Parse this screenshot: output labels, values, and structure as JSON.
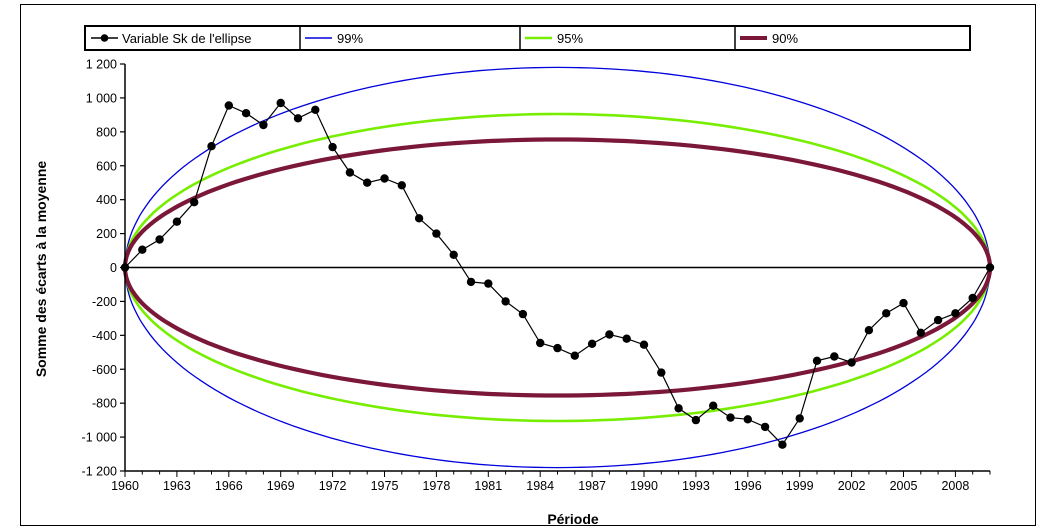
{
  "chart_data": {
    "type": "line",
    "title": "",
    "xlabel": "Période",
    "ylabel": "Somme des écarts à la moyenne",
    "xlim": [
      1960,
      2010
    ],
    "ylim": [
      -1200,
      1200
    ],
    "x_ticks": [
      1960,
      1963,
      1966,
      1969,
      1972,
      1975,
      1978,
      1981,
      1984,
      1987,
      1990,
      1993,
      1996,
      1999,
      2002,
      2005,
      2008
    ],
    "y_ticks": [
      1200,
      1000,
      800,
      600,
      400,
      200,
      0,
      -200,
      -400,
      -600,
      -800,
      -1000,
      -1200
    ],
    "y_tick_labels": [
      "1 200",
      "1 000",
      "800",
      "600",
      "400",
      "200",
      "0",
      "-200",
      "-400",
      "-600",
      "-800",
      "-1 000",
      "-1 200"
    ],
    "legend_placement": "top",
    "grid": false,
    "series": [
      {
        "name": "Variable Sk de l'ellipse",
        "color": "#000000",
        "marker": "circle",
        "x": [
          1960,
          1961,
          1962,
          1963,
          1964,
          1965,
          1966,
          1967,
          1968,
          1969,
          1970,
          1971,
          1972,
          1973,
          1974,
          1975,
          1976,
          1977,
          1978,
          1979,
          1980,
          1981,
          1982,
          1983,
          1984,
          1985,
          1986,
          1987,
          1988,
          1989,
          1990,
          1991,
          1992,
          1993,
          1994,
          1995,
          1996,
          1997,
          1998,
          1999,
          2000,
          2001,
          2002,
          2003,
          2004,
          2005,
          2006,
          2007,
          2008,
          2009,
          2010
        ],
        "values": [
          0,
          105,
          165,
          270,
          385,
          715,
          955,
          910,
          840,
          970,
          880,
          930,
          710,
          560,
          500,
          525,
          485,
          290,
          200,
          75,
          -85,
          -95,
          -200,
          -275,
          -445,
          -475,
          -520,
          -450,
          -395,
          -420,
          -455,
          -620,
          -830,
          -900,
          -815,
          -885,
          -895,
          -940,
          -1045,
          -890,
          -550,
          -525,
          -560,
          -370,
          -270,
          -210,
          -385,
          -310,
          -270,
          -180,
          0
        ]
      },
      {
        "name": "99%",
        "color": "#0000dd",
        "amplitude": 1180
      },
      {
        "name": "95%",
        "color": "#77ee00",
        "amplitude": 905
      },
      {
        "name": "90%",
        "color": "#7b1738",
        "amplitude": 755
      }
    ]
  }
}
